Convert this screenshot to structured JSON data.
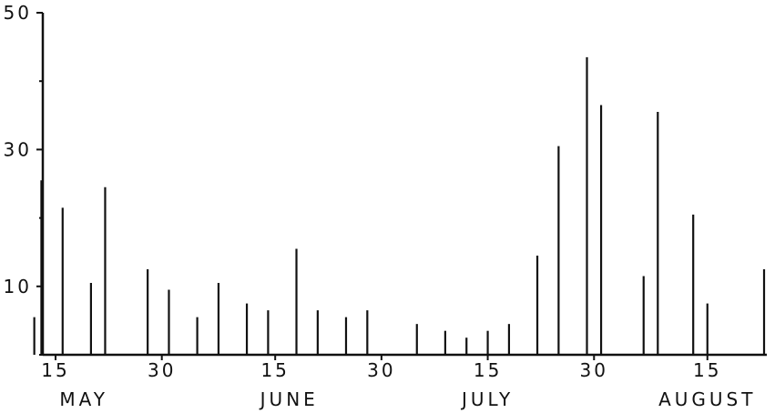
{
  "chart_data": {
    "type": "bar",
    "title": "",
    "xlabel": "",
    "ylabel": "",
    "ylim": [
      0,
      50
    ],
    "y_ticks": [
      10,
      30,
      50
    ],
    "grid": false,
    "x_ticks": [
      {
        "date": "05-15",
        "label": "15"
      },
      {
        "date": "05-30",
        "label": "30"
      },
      {
        "date": "06-15",
        "label": "15"
      },
      {
        "date": "06-30",
        "label": "30"
      },
      {
        "date": "07-15",
        "label": "15"
      },
      {
        "date": "07-30",
        "label": "30"
      },
      {
        "date": "08-15",
        "label": "15"
      }
    ],
    "months": [
      {
        "label": "MAY",
        "date": "05-19"
      },
      {
        "label": "JUNE",
        "date": "06-17"
      },
      {
        "label": "JULY",
        "date": "07-15"
      },
      {
        "label": "AUGUST",
        "date": "08-15"
      }
    ],
    "x": [
      "05-12",
      "05-13",
      "05-16",
      "05-20",
      "05-22",
      "05-28",
      "05-31",
      "06-04",
      "06-07",
      "06-11",
      "06-14",
      "06-18",
      "06-21",
      "06-25",
      "06-28",
      "07-05",
      "07-09",
      "07-12",
      "07-15",
      "07-18",
      "07-22",
      "07-25",
      "07-29",
      "07-31",
      "08-06",
      "08-08",
      "08-13",
      "08-15",
      "08-23"
    ],
    "values": [
      5.5,
      25.5,
      21.5,
      10.5,
      24.5,
      12.5,
      9.5,
      5.5,
      10.5,
      7.5,
      6.5,
      15.5,
      6.5,
      5.5,
      6.5,
      4.5,
      3.5,
      2.5,
      3.5,
      4.5,
      14.5,
      30.5,
      43.5,
      36.5,
      11.5,
      35.5,
      20.5,
      7.5,
      12.5
    ]
  }
}
